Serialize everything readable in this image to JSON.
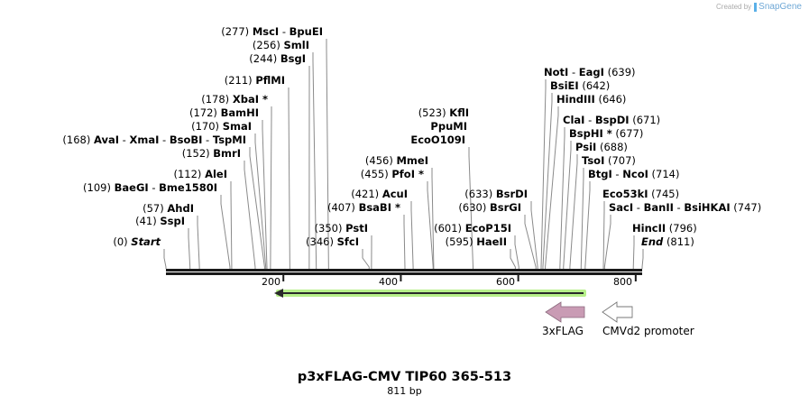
{
  "credit": {
    "prefix": "Created by",
    "brand": "SnapGene"
  },
  "title": "p3xFLAG-CMV TIP60 365-513",
  "length_label": "811 bp",
  "sequence_length": 811,
  "ruler": {
    "ticks": [
      {
        "value": 200,
        "label": "200"
      },
      {
        "value": 400,
        "label": "400"
      },
      {
        "value": 600,
        "label": "600"
      },
      {
        "value": 800,
        "label": "800"
      }
    ]
  },
  "left_sites": [
    {
      "pos": "(277)",
      "names": [
        "MscI",
        "BpuEI"
      ],
      "star": false,
      "bp": 277
    },
    {
      "pos": "(256)",
      "names": [
        "SmlI"
      ],
      "star": false,
      "bp": 256
    },
    {
      "pos": "(244)",
      "names": [
        "BsgI"
      ],
      "star": false,
      "bp": 244
    },
    {
      "pos": "(211)",
      "names": [
        "PflMI"
      ],
      "star": false,
      "bp": 211
    },
    {
      "pos": "(178)",
      "names": [
        "XbaI"
      ],
      "star": true,
      "bp": 178
    },
    {
      "pos": "(172)",
      "names": [
        "BamHI"
      ],
      "star": false,
      "bp": 172
    },
    {
      "pos": "(170)",
      "names": [
        "SmaI"
      ],
      "star": false,
      "bp": 170
    },
    {
      "pos": "(168)",
      "names": [
        "AvaI",
        "XmaI",
        "BsoBI",
        "TspMI"
      ],
      "star": false,
      "bp": 168
    },
    {
      "pos": "(152)",
      "names": [
        "BmrI"
      ],
      "star": false,
      "bp": 152
    },
    {
      "pos": "(112)",
      "names": [
        "AleI"
      ],
      "star": false,
      "bp": 112
    },
    {
      "pos": "(109)",
      "names": [
        "BaeGI",
        "Bme1580I"
      ],
      "star": false,
      "bp": 109
    },
    {
      "pos": "(57)",
      "names": [
        "AhdI"
      ],
      "star": false,
      "bp": 57
    },
    {
      "pos": "(41)",
      "names": [
        "SspI"
      ],
      "star": false,
      "bp": 41
    },
    {
      "pos": "(0)",
      "names": [
        "Start"
      ],
      "star": false,
      "bp": 0,
      "italic": true
    }
  ],
  "middle_sites": [
    {
      "pos": "(523)",
      "names": [
        "KflI"
      ],
      "star": false,
      "bp": 523
    },
    {
      "pos": "",
      "names": [
        "PpuMI"
      ],
      "star": false,
      "bp": 523
    },
    {
      "pos": "",
      "names": [
        "EcoO109I"
      ],
      "star": false,
      "bp": 523
    },
    {
      "pos": "(456)",
      "names": [
        "MmeI"
      ],
      "star": false,
      "bp": 456
    },
    {
      "pos": "(455)",
      "names": [
        "PfoI"
      ],
      "star": true,
      "bp": 455
    },
    {
      "pos": "(421)",
      "names": [
        "AcuI"
      ],
      "star": false,
      "bp": 421
    },
    {
      "pos": "(407)",
      "names": [
        "BsaBI"
      ],
      "star": true,
      "bp": 407
    },
    {
      "pos": "(350)",
      "names": [
        "PstI"
      ],
      "star": false,
      "bp": 350
    },
    {
      "pos": "(346)",
      "names": [
        "SfcI"
      ],
      "star": false,
      "bp": 346
    },
    {
      "pos": "(633)",
      "names": [
        "BsrDI"
      ],
      "star": false,
      "bp": 633
    },
    {
      "pos": "(630)",
      "names": [
        "BsrGI"
      ],
      "star": false,
      "bp": 630
    },
    {
      "pos": "(601)",
      "names": [
        "EcoP15I"
      ],
      "star": false,
      "bp": 601
    },
    {
      "pos": "(595)",
      "names": [
        "HaeII"
      ],
      "star": false,
      "bp": 595
    }
  ],
  "right_sites": [
    {
      "pos": "(639)",
      "names": [
        "NotI",
        "EagI"
      ],
      "star": false,
      "bp": 639
    },
    {
      "pos": "(642)",
      "names": [
        "BsiEI"
      ],
      "star": false,
      "bp": 642
    },
    {
      "pos": "(646)",
      "names": [
        "HindIII"
      ],
      "star": false,
      "bp": 646
    },
    {
      "pos": "(671)",
      "names": [
        "ClaI",
        "BspDI"
      ],
      "star": false,
      "bp": 671
    },
    {
      "pos": "(677)",
      "names": [
        "BspHI"
      ],
      "star": true,
      "bp": 677
    },
    {
      "pos": "(688)",
      "names": [
        "PsiI"
      ],
      "star": false,
      "bp": 688
    },
    {
      "pos": "(707)",
      "names": [
        "TsoI"
      ],
      "star": false,
      "bp": 707
    },
    {
      "pos": "(714)",
      "names": [
        "BtgI",
        "NcoI"
      ],
      "star": false,
      "bp": 714
    },
    {
      "pos": "(745)",
      "names": [
        "Eco53kI"
      ],
      "star": false,
      "bp": 745
    },
    {
      "pos": "(747)",
      "names": [
        "SacI",
        "BanII",
        "BsiHKAI"
      ],
      "star": false,
      "bp": 747
    },
    {
      "pos": "(796)",
      "names": [
        "HincII"
      ],
      "star": false,
      "bp": 796
    },
    {
      "pos": "(811)",
      "names": [
        "End"
      ],
      "star": false,
      "bp": 811,
      "italic": true
    }
  ],
  "features": [
    {
      "name": "TIP60 insert",
      "label": "",
      "direction": "reverse",
      "start": 183,
      "end": 714,
      "color": "#b7f08a"
    },
    {
      "name": "3xFLAG",
      "label": "3xFLAG",
      "direction": "reverse",
      "color": "#c99bb4"
    },
    {
      "name": "CMVd2 promoter",
      "label": "CMVd2 promoter",
      "direction": "reverse",
      "color": "#ffffff"
    }
  ],
  "colors": {
    "backbone": "#1a1a1a",
    "site_line": "#888888",
    "insert": "#b7f08a",
    "insert_line": "#2a2a2a",
    "flag": "#c99bb4"
  }
}
